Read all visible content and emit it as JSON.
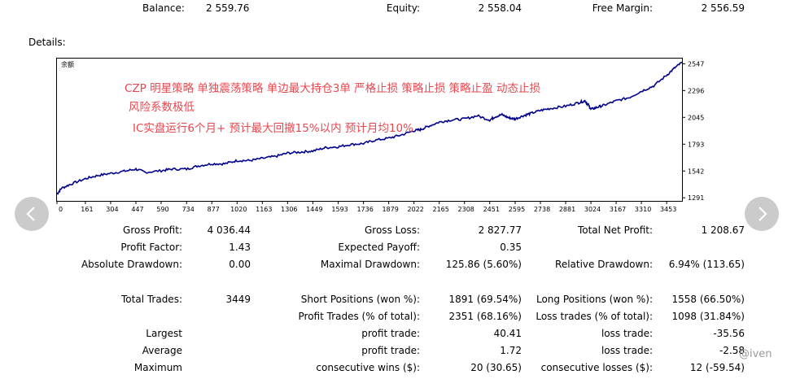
{
  "summary": {
    "balance_label": "Balance:",
    "balance_value": "2 559.76",
    "equity_label": "Equity:",
    "equity_value": "2 558.04",
    "free_margin_label": "Free Margin:",
    "free_margin_value": "2 556.59"
  },
  "details_label": "Details:",
  "chart_data": {
    "type": "line",
    "legend": "余额",
    "x_ticks": [
      "0",
      "161",
      "304",
      "447",
      "590",
      "734",
      "877",
      "1020",
      "1163",
      "1306",
      "1449",
      "1593",
      "1736",
      "1879",
      "2022",
      "2165",
      "2308",
      "2451",
      "2595",
      "2738",
      "2881",
      "3024",
      "3167",
      "3310",
      "3453"
    ],
    "y_ticks": [
      "2547",
      "2296",
      "2045",
      "1793",
      "1542",
      "1291"
    ],
    "xlim": [
      0,
      3540
    ],
    "ylim": [
      1262,
      2596
    ],
    "series": [
      {
        "color": "#00008b",
        "x": [
          0,
          25,
          80,
          161,
          230,
          304,
          380,
          447,
          500,
          590,
          650,
          734,
          800,
          877,
          950,
          1020,
          1090,
          1163,
          1240,
          1306,
          1380,
          1449,
          1520,
          1593,
          1660,
          1736,
          1800,
          1879,
          1950,
          2022,
          2060,
          2100,
          2165,
          2230,
          2308,
          2380,
          2451,
          2480,
          2520,
          2560,
          2595,
          2640,
          2680,
          2738,
          2800,
          2881,
          2950,
          2990,
          3010,
          3024,
          3060,
          3100,
          3167,
          3240,
          3310,
          3380,
          3453,
          3500,
          3540
        ],
        "y": [
          1325,
          1380,
          1420,
          1470,
          1500,
          1520,
          1540,
          1560,
          1530,
          1545,
          1560,
          1560,
          1590,
          1610,
          1610,
          1640,
          1640,
          1660,
          1680,
          1710,
          1720,
          1730,
          1760,
          1770,
          1790,
          1800,
          1830,
          1850,
          1880,
          1920,
          1930,
          1960,
          2000,
          2020,
          2030,
          2060,
          2020,
          2050,
          2070,
          2040,
          2030,
          2060,
          2080,
          2110,
          2130,
          2150,
          2180,
          2200,
          2160,
          2120,
          2140,
          2160,
          2200,
          2230,
          2290,
          2340,
          2440,
          2510,
          2560
        ]
      }
    ]
  },
  "annotations": {
    "line1": "CZP 明星策略   单独震荡策略  单边最大持仓3单 严格止损 策略止损  策略止盈 动态止损",
    "line2": "风险系数极低",
    "line3": "IC实盘运行6个月+ 预计最大回撤15%以内  预计月均10%"
  },
  "stats": {
    "gross_profit_label": "Gross Profit:",
    "gross_profit": "4 036.44",
    "gross_loss_label": "Gross Loss:",
    "gross_loss": "2 827.77",
    "total_net_profit_label": "Total Net Profit:",
    "total_net_profit": "1 208.67",
    "profit_factor_label": "Profit Factor:",
    "profit_factor": "1.43",
    "expected_payoff_label": "Expected Payoff:",
    "expected_payoff": "0.35",
    "absolute_drawdown_label": "Absolute Drawdown:",
    "absolute_drawdown": "0.00",
    "maximal_drawdown_label": "Maximal Drawdown:",
    "maximal_drawdown": "125.86 (5.60%)",
    "relative_drawdown_label": "Relative Drawdown:",
    "relative_drawdown": "6.94% (113.65)",
    "total_trades_label": "Total Trades:",
    "total_trades": "3449",
    "short_positions_label": "Short Positions (won %):",
    "short_positions": "1891 (69.54%)",
    "long_positions_label": "Long Positions (won %):",
    "long_positions": "1558 (66.50%)",
    "profit_trades_label": "Profit Trades (% of total):",
    "profit_trades": "2351 (68.16%)",
    "loss_trades_label": "Loss trades (% of total):",
    "loss_trades": "1098 (31.84%)",
    "largest_label": "Largest",
    "largest_profit_label": "profit trade:",
    "largest_profit": "40.41",
    "largest_loss_label": "loss trade:",
    "largest_loss": "-35.56",
    "average_label": "Average",
    "average_profit_label": "profit trade:",
    "average_profit": "1.72",
    "average_loss_label": "loss trade:",
    "average_loss": "-2.58",
    "maximum_label": "Maximum",
    "max_wins_label": "consecutive wins ($):",
    "max_wins": "20 (30.65)",
    "max_losses_label": "consecutive losses ($):",
    "max_losses": "12 (-59.54)"
  },
  "watermark": "@iven",
  "nav": {
    "prev_icon": "chevron-left-icon",
    "next_icon": "chevron-right-icon"
  }
}
